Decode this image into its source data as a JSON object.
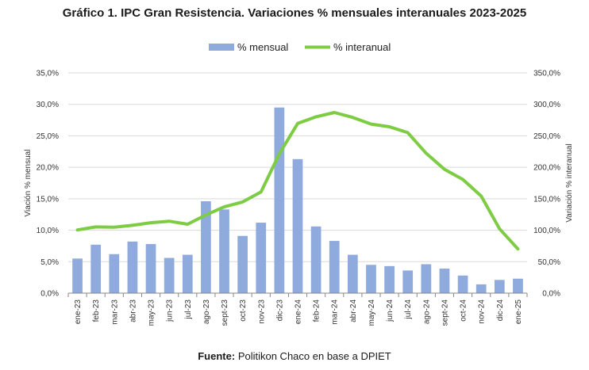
{
  "title": "Gráfico 1. IPC Gran Resistencia. Variaciones % mensuales interanuales 2023-2025",
  "source": {
    "label": "Fuente:",
    "text": "Politikon Chaco en base a DPIET"
  },
  "colors": {
    "bar": "#8faadc",
    "line": "#7dcc44",
    "grid": "#d9d9d9",
    "axis": "#888888"
  },
  "chart_data": {
    "type": "bar+line",
    "categories": [
      "ene-23",
      "feb-23",
      "mar-23",
      "abr-23",
      "may-23",
      "jun-23",
      "jul-23",
      "ago-23",
      "sept-23",
      "oct-23",
      "nov-23",
      "dic-23",
      "ene-24",
      "feb-24",
      "mar-24",
      "abr-24",
      "may-24",
      "jun-24",
      "jul-24",
      "ago-24",
      "sept-24",
      "oct-24",
      "nov-24",
      "dic-24",
      "ene-25"
    ],
    "series": [
      {
        "name": "% mensual",
        "type": "bar",
        "axis": "left",
        "values": [
          5.5,
          7.7,
          6.2,
          8.2,
          7.8,
          5.6,
          6.1,
          14.6,
          13.3,
          9.1,
          11.2,
          29.5,
          21.3,
          10.6,
          8.3,
          6.1,
          4.5,
          4.3,
          3.6,
          4.6,
          3.9,
          2.8,
          1.4,
          2.1,
          2.3
        ]
      },
      {
        "name": "% interanual",
        "type": "line",
        "axis": "right",
        "values": [
          100.5,
          105.2,
          104.9,
          107.8,
          111.9,
          114.3,
          109.5,
          124.3,
          137.1,
          144.9,
          160.8,
          221.4,
          269.7,
          280.3,
          287.0,
          279.2,
          268.7,
          264.4,
          255.1,
          222.3,
          196.8,
          180.7,
          154.2,
          102.2,
          70.3
        ]
      }
    ],
    "y_left": {
      "label": "Viación % mensual",
      "min": 0,
      "max": 35,
      "step": 5,
      "tick_labels": [
        "0,0%",
        "5,0%",
        "10,0%",
        "15,0%",
        "20,0%",
        "25,0%",
        "30,0%",
        "35,0%"
      ]
    },
    "y_right": {
      "label": "Variación % interanual",
      "min": 0,
      "max": 350,
      "step": 50,
      "tick_labels": [
        "0,0%",
        "50,0%",
        "100,0%",
        "150,0%",
        "200,0%",
        "250,0%",
        "300,0%",
        "350,0%"
      ]
    },
    "grid": true,
    "legend_position": "top"
  }
}
